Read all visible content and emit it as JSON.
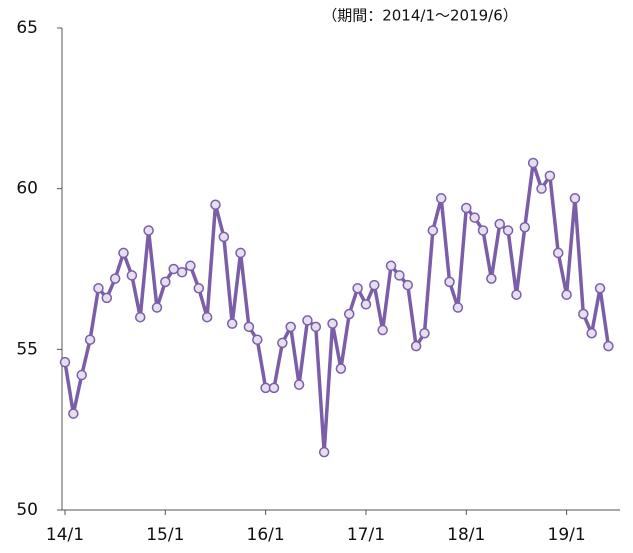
{
  "chart_data": {
    "type": "line",
    "annotation": "（期間：2014/1～2019/6）",
    "categories": [
      "14/1",
      null,
      null,
      null,
      null,
      null,
      null,
      null,
      null,
      null,
      null,
      null,
      "15/1",
      null,
      null,
      null,
      null,
      null,
      null,
      null,
      null,
      null,
      null,
      null,
      "16/1",
      null,
      null,
      null,
      null,
      null,
      null,
      null,
      null,
      null,
      null,
      null,
      "17/1",
      null,
      null,
      null,
      null,
      null,
      null,
      null,
      null,
      null,
      null,
      null,
      "18/1",
      null,
      null,
      null,
      null,
      null,
      null,
      null,
      null,
      null,
      null,
      null,
      "19/1",
      null,
      null,
      null,
      null,
      null
    ],
    "values": [
      54.6,
      53.0,
      54.2,
      55.3,
      56.9,
      56.6,
      57.2,
      58.0,
      57.3,
      56.0,
      58.7,
      56.3,
      57.1,
      57.5,
      57.4,
      57.6,
      56.9,
      56.0,
      59.5,
      58.5,
      55.8,
      58.0,
      55.7,
      55.3,
      53.8,
      53.8,
      55.2,
      55.7,
      53.9,
      55.9,
      55.7,
      51.8,
      55.8,
      54.4,
      56.1,
      56.9,
      56.4,
      57.0,
      55.6,
      57.6,
      57.3,
      57.0,
      55.1,
      55.5,
      58.7,
      59.7,
      57.1,
      56.3,
      59.4,
      59.1,
      58.7,
      57.2,
      58.9,
      58.7,
      56.7,
      58.8,
      60.8,
      60.0,
      60.4,
      58.0,
      56.7,
      59.7,
      56.1,
      55.5,
      56.9,
      55.1
    ],
    "color": "#7b5ea7",
    "marker_fill": "#e6dff0",
    "ylim": [
      50,
      65
    ],
    "yticks": [
      50,
      55,
      60,
      65
    ]
  }
}
